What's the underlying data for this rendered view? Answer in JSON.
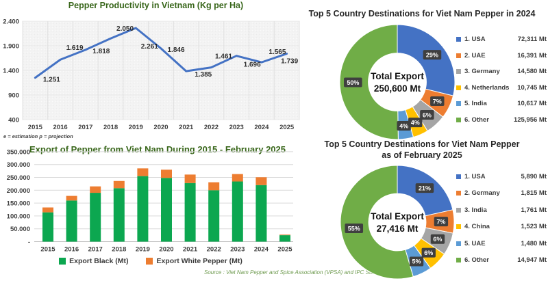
{
  "page": {
    "source_note": "Source : Viet Nam Pepper and Spice Association (VPSA) and IPC Statistical Yearbook."
  },
  "colors": {
    "title_green": "#38661A",
    "source_green": "#6F9B50",
    "axis_text": "#404040",
    "line_blue": "#4472C4",
    "bar_green": "#0CA750",
    "bar_orange": "#ED7D31",
    "label_box": "#3F3F3F",
    "right_title": "#262626"
  },
  "chart_data": [
    {
      "id": "productivity-line",
      "type": "line",
      "title": "Pepper Productivity in Vietnam (Kg per Ha)",
      "footnote": "e = estimation p = projection",
      "x": [
        "2015",
        "2016",
        "2017",
        "2018",
        "2019",
        "2020",
        "2021",
        "2022",
        "2023",
        "2024",
        "2025"
      ],
      "values": [
        1251,
        1619,
        1818,
        2050,
        2261,
        1846,
        1385,
        1461,
        1696,
        1565,
        1739
      ],
      "point_labels": [
        "1.251",
        "1.619",
        "1.818",
        "2.050",
        "2.261",
        "1.846",
        "1.385",
        "1.461",
        "1.696",
        "1.565",
        "1.739"
      ],
      "y_ticks": [
        "2.400",
        "1.900",
        "1.400",
        "900",
        "400"
      ],
      "y_tick_values": [
        2400,
        1900,
        1400,
        900,
        400
      ],
      "ylim": [
        400,
        2400
      ],
      "line_color": "#4472C4",
      "grid": "on",
      "legend_position": "none"
    },
    {
      "id": "export-bar",
      "type": "bar",
      "stacked": true,
      "title": "Export of Pepper from Viet Nam During 2015 - February 2025",
      "categories": [
        "2015",
        "2016",
        "2017",
        "2018",
        "2019",
        "2020",
        "2021",
        "2022",
        "2023",
        "2024",
        "2025"
      ],
      "series": [
        {
          "name": "Export Black (Mt)",
          "color": "#0CA750",
          "values": [
            114000,
            160000,
            190000,
            208000,
            255000,
            248000,
            228000,
            200000,
            234000,
            220000,
            25000
          ]
        },
        {
          "name": "Export White Pepper (Mt)",
          "color": "#ED7D31",
          "values": [
            19000,
            18000,
            25000,
            28000,
            30000,
            32000,
            33000,
            31000,
            29000,
            30600,
            2400
          ]
        }
      ],
      "y_ticks": [
        "350.000",
        "300.000",
        "250.000",
        "200.000",
        "150.000",
        "100.000",
        "50.000",
        "-"
      ],
      "y_tick_values": [
        350000,
        300000,
        250000,
        200000,
        150000,
        100000,
        50000,
        0
      ],
      "ylim": [
        0,
        350000
      ],
      "grid": "horizontal",
      "legend_position": "bottom"
    },
    {
      "id": "destinations-2024",
      "type": "pie",
      "donut": true,
      "title": "Top 5 Country Destinations for Viet Nam Pepper in 2024",
      "center_label": "Total Export",
      "center_value": "250,600 Mt",
      "total_value": 250600,
      "legend_position": "right",
      "slices": [
        {
          "name": "1. USA",
          "value": 72311,
          "value_label": "72,311 Mt",
          "pct": "29%",
          "color": "#4472C4"
        },
        {
          "name": "2. UAE",
          "value": 16391,
          "value_label": "16,391 Mt",
          "pct": "7%",
          "color": "#ED7D31"
        },
        {
          "name": "3. Germany",
          "value": 14580,
          "value_label": "14,580 Mt",
          "pct": "6%",
          "color": "#A5A5A5"
        },
        {
          "name": "4. Netherlands",
          "value": 10745,
          "value_label": "10,745 Mt",
          "pct": "4%",
          "color": "#FFC000"
        },
        {
          "name": "5. India",
          "value": 10617,
          "value_label": "10,617 Mt",
          "pct": "4%",
          "color": "#5B9BD5"
        },
        {
          "name": "6. Other",
          "value": 125956,
          "value_label": "125,956 Mt",
          "pct": "50%",
          "color": "#70AD47"
        }
      ]
    },
    {
      "id": "destinations-feb-2025",
      "type": "pie",
      "donut": true,
      "title": "Top 5 Country Destinations for Viet Nam Pepper as of February 2025",
      "title_lines": [
        "Top 5 Country Destinations for Viet Nam Pepper",
        "as of February 2025"
      ],
      "center_label": "Total Export",
      "center_value": "27,416 Mt",
      "total_value": 27416,
      "legend_position": "right",
      "slices": [
        {
          "name": "1. USA",
          "value": 5890,
          "value_label": "5,890 Mt",
          "pct": "21%",
          "color": "#4472C4"
        },
        {
          "name": "2. Germany",
          "value": 1815,
          "value_label": "1,815 Mt",
          "pct": "7%",
          "color": "#ED7D31"
        },
        {
          "name": "3. India",
          "value": 1761,
          "value_label": "1,761 Mt",
          "pct": "6%",
          "color": "#A5A5A5"
        },
        {
          "name": "4. China",
          "value": 1523,
          "value_label": "1,523 Mt",
          "pct": "6%",
          "color": "#FFC000"
        },
        {
          "name": "5. UAE",
          "value": 1480,
          "value_label": "1,480 Mt",
          "pct": "5%",
          "color": "#5B9BD5"
        },
        {
          "name": "6. Other",
          "value": 14947,
          "value_label": "14,947 Mt",
          "pct": "55%",
          "color": "#70AD47"
        }
      ]
    }
  ]
}
